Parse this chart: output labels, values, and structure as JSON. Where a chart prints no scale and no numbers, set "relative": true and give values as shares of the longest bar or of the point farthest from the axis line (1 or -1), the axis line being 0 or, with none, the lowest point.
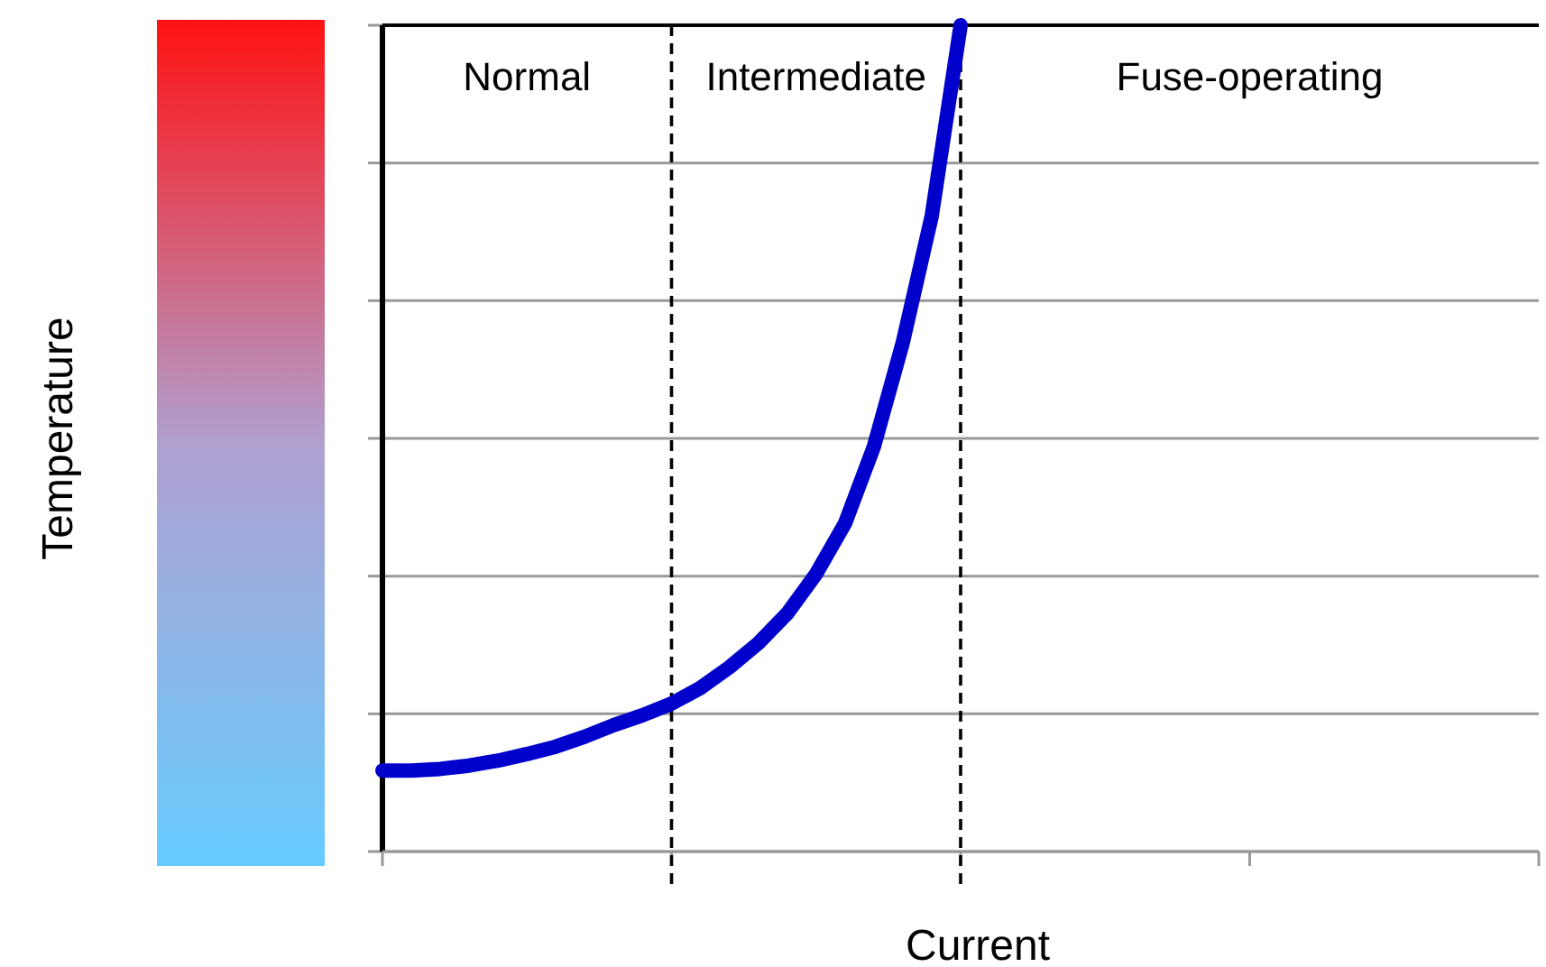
{
  "chart_data": {
    "type": "line",
    "relative": true,
    "xlabel": "Current",
    "categories": [
      null,
      null,
      null,
      null,
      null,
      null,
      null,
      null,
      null,
      null,
      null,
      null,
      null,
      null,
      null,
      null,
      null,
      null,
      null,
      null,
      null,
      null,
      null,
      null,
      null,
      null,
      null,
      null,
      null,
      null,
      null,
      null,
      null,
      null,
      null,
      null,
      null,
      null,
      null,
      null,
      null
    ],
    "series": [
      {
        "color": "#0000cc",
        "values": [
          0.098,
          0.098,
          0.1,
          0.104,
          0.11,
          0.118,
          0.127,
          0.139,
          0.153,
          0.165,
          0.179,
          0.198,
          0.223,
          0.252,
          0.288,
          0.336,
          0.397,
          0.49,
          0.616,
          0.769,
          1.0,
          null,
          null,
          null,
          null,
          null,
          null,
          null,
          null,
          null,
          null,
          null,
          null,
          null,
          null,
          null,
          null,
          null,
          null,
          null,
          null
        ]
      }
    ],
    "grid": "y",
    "line_style": "solid",
    "annotations": [
      "Normal",
      "Intermediate",
      "Fuse-operating",
      "Temperature"
    ]
  }
}
